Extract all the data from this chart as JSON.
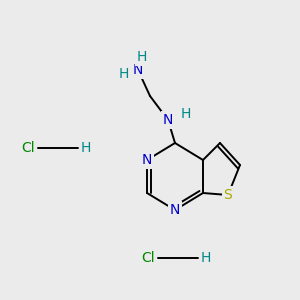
{
  "bg_color": "#ebebeb",
  "atom_colors": {
    "C": "#000000",
    "N": "#0000cc",
    "S": "#aaaa00",
    "H": "#008888",
    "Cl": "#008800"
  },
  "bond_color": "#000000",
  "font_size": 10
}
